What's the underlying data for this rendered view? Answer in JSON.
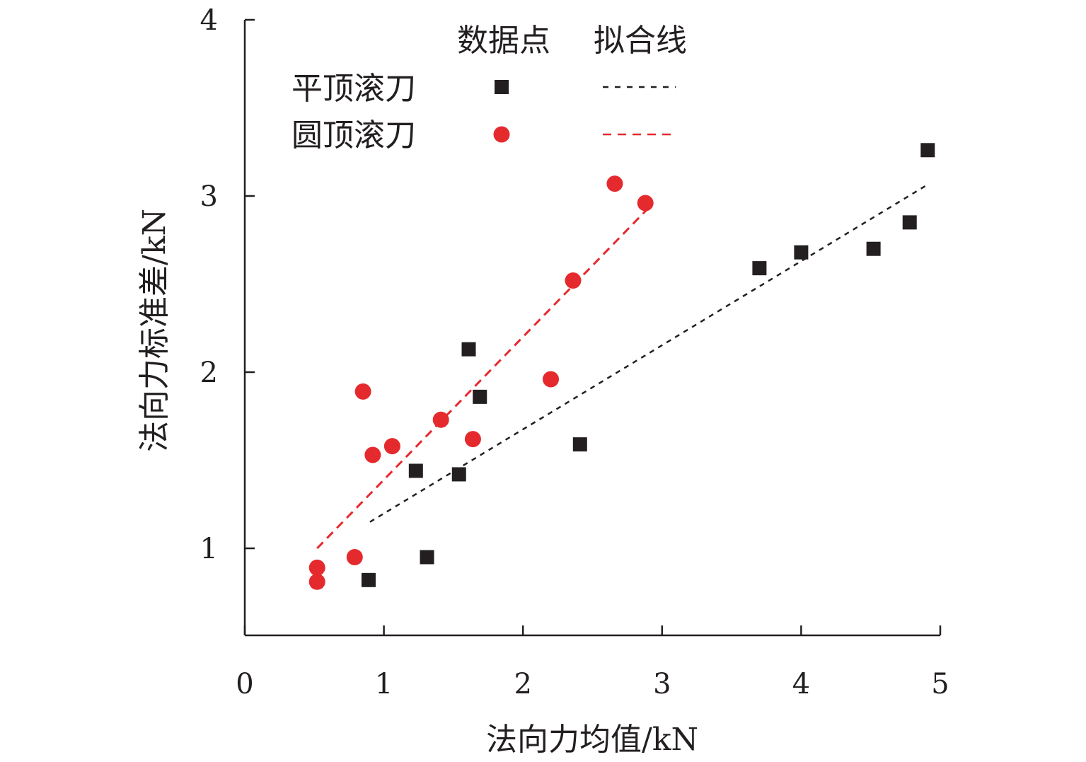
{
  "chart_data": {
    "type": "scatter",
    "xlabel": "法向力均值/kN",
    "ylabel": "法向力标准差/kN",
    "xlim": [
      0,
      5
    ],
    "ylim": [
      0.5,
      4
    ],
    "x_ticks": [
      0,
      1,
      2,
      3,
      4,
      5
    ],
    "y_ticks": [
      1,
      2,
      3,
      4
    ],
    "x_tick_labels": [
      "0",
      "1",
      "2",
      "3",
      "4",
      "5"
    ],
    "y_tick_labels": [
      "1",
      "2",
      "3",
      "4"
    ],
    "legend": {
      "header_points": "数据点",
      "header_fit": "拟合线",
      "placement": "top-center"
    },
    "series": [
      {
        "name": "平顶滚刀",
        "marker": "square",
        "color": "#231f20",
        "points": [
          {
            "x": 0.89,
            "y": 0.82
          },
          {
            "x": 1.31,
            "y": 0.95
          },
          {
            "x": 1.23,
            "y": 1.44
          },
          {
            "x": 1.54,
            "y": 1.42
          },
          {
            "x": 1.61,
            "y": 2.13
          },
          {
            "x": 1.69,
            "y": 1.86
          },
          {
            "x": 2.41,
            "y": 1.59
          },
          {
            "x": 3.7,
            "y": 2.59
          },
          {
            "x": 4.0,
            "y": 2.68
          },
          {
            "x": 4.52,
            "y": 2.7
          },
          {
            "x": 4.78,
            "y": 2.85
          },
          {
            "x": 4.91,
            "y": 3.26
          }
        ],
        "fit_line": {
          "x": [
            0.9,
            4.9
          ],
          "y": [
            1.15,
            3.06
          ]
        }
      },
      {
        "name": "圆顶滚刀",
        "marker": "circle",
        "color": "#e52a2e",
        "points": [
          {
            "x": 0.52,
            "y": 0.89
          },
          {
            "x": 0.52,
            "y": 0.81
          },
          {
            "x": 0.79,
            "y": 0.95
          },
          {
            "x": 0.85,
            "y": 1.89
          },
          {
            "x": 0.92,
            "y": 1.53
          },
          {
            "x": 1.06,
            "y": 1.58
          },
          {
            "x": 1.41,
            "y": 1.73
          },
          {
            "x": 1.64,
            "y": 1.62
          },
          {
            "x": 2.2,
            "y": 1.96
          },
          {
            "x": 2.36,
            "y": 2.52
          },
          {
            "x": 2.66,
            "y": 3.07
          },
          {
            "x": 2.88,
            "y": 2.96
          }
        ],
        "fit_line": {
          "x": [
            0.52,
            2.9
          ],
          "y": [
            1.0,
            2.93
          ]
        }
      }
    ]
  }
}
